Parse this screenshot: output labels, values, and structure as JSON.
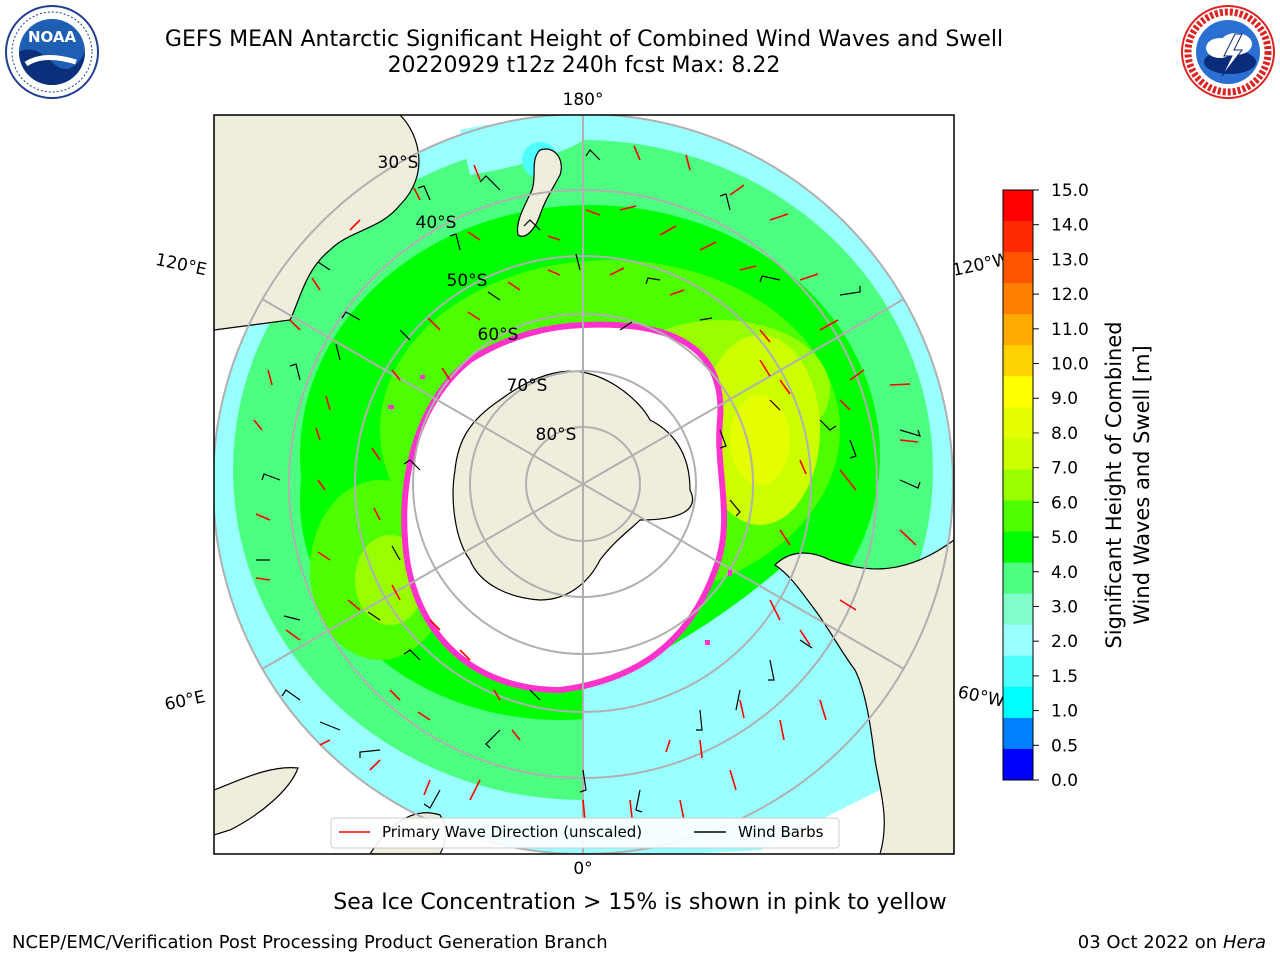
{
  "title": {
    "line1": "GEFS MEAN Antarctic Significant Height of Combined Wind Waves and Swell",
    "line2": "20220929 t12z 240h fcst   Max: 8.22"
  },
  "logos": {
    "left": "noaa-logo",
    "right": "nws-logo"
  },
  "map": {
    "projection": "south-polar-stereographic",
    "longitude_labels": [
      "180°",
      "120°E",
      "120°W",
      "60°E",
      "60°W",
      "0°"
    ],
    "latitude_labels": [
      "30°S",
      "40°S",
      "50°S",
      "60°S",
      "70°S",
      "80°S"
    ],
    "colors": {
      "land": "#efeedc",
      "coast": "#000000",
      "grid": "#b0b0b0",
      "ice_edge": "#ff33cc",
      "ice_fill": "#ffffff",
      "arrow": "#ff0000"
    }
  },
  "legend": {
    "wave_label": "Primary Wave Direction (unscaled)",
    "barb_label": "Wind Barbs"
  },
  "colorbar": {
    "title_line1": "Significant Height of Combined",
    "title_line2": "Wind Waves and Swell [m]",
    "ticks": [
      "15.0",
      "14.0",
      "13.0",
      "12.0",
      "11.0",
      "10.0",
      "9.0",
      "8.0",
      "7.0",
      "6.0",
      "5.0",
      "4.0",
      "3.0",
      "2.0",
      "1.5",
      "1.0",
      "0.5",
      "0.0"
    ],
    "colors_top_to_bottom": [
      "#ff0000",
      "#ff2a00",
      "#ff5500",
      "#ff7f00",
      "#ffaa00",
      "#ffd400",
      "#ffff00",
      "#e6ff00",
      "#ccff00",
      "#99ff00",
      "#4dff00",
      "#00ff00",
      "#4dff80",
      "#80ffcc",
      "#99ffff",
      "#4dffff",
      "#00ffff",
      "#0080ff",
      "#0000ff"
    ]
  },
  "ice_note": "Sea Ice Concentration > 15% is shown in pink to yellow",
  "footer": {
    "left": "NCEP/EMC/Verification Post Processing Product Generation Branch",
    "right_date": "03 Oct 2022 on ",
    "right_host": "Hera"
  }
}
